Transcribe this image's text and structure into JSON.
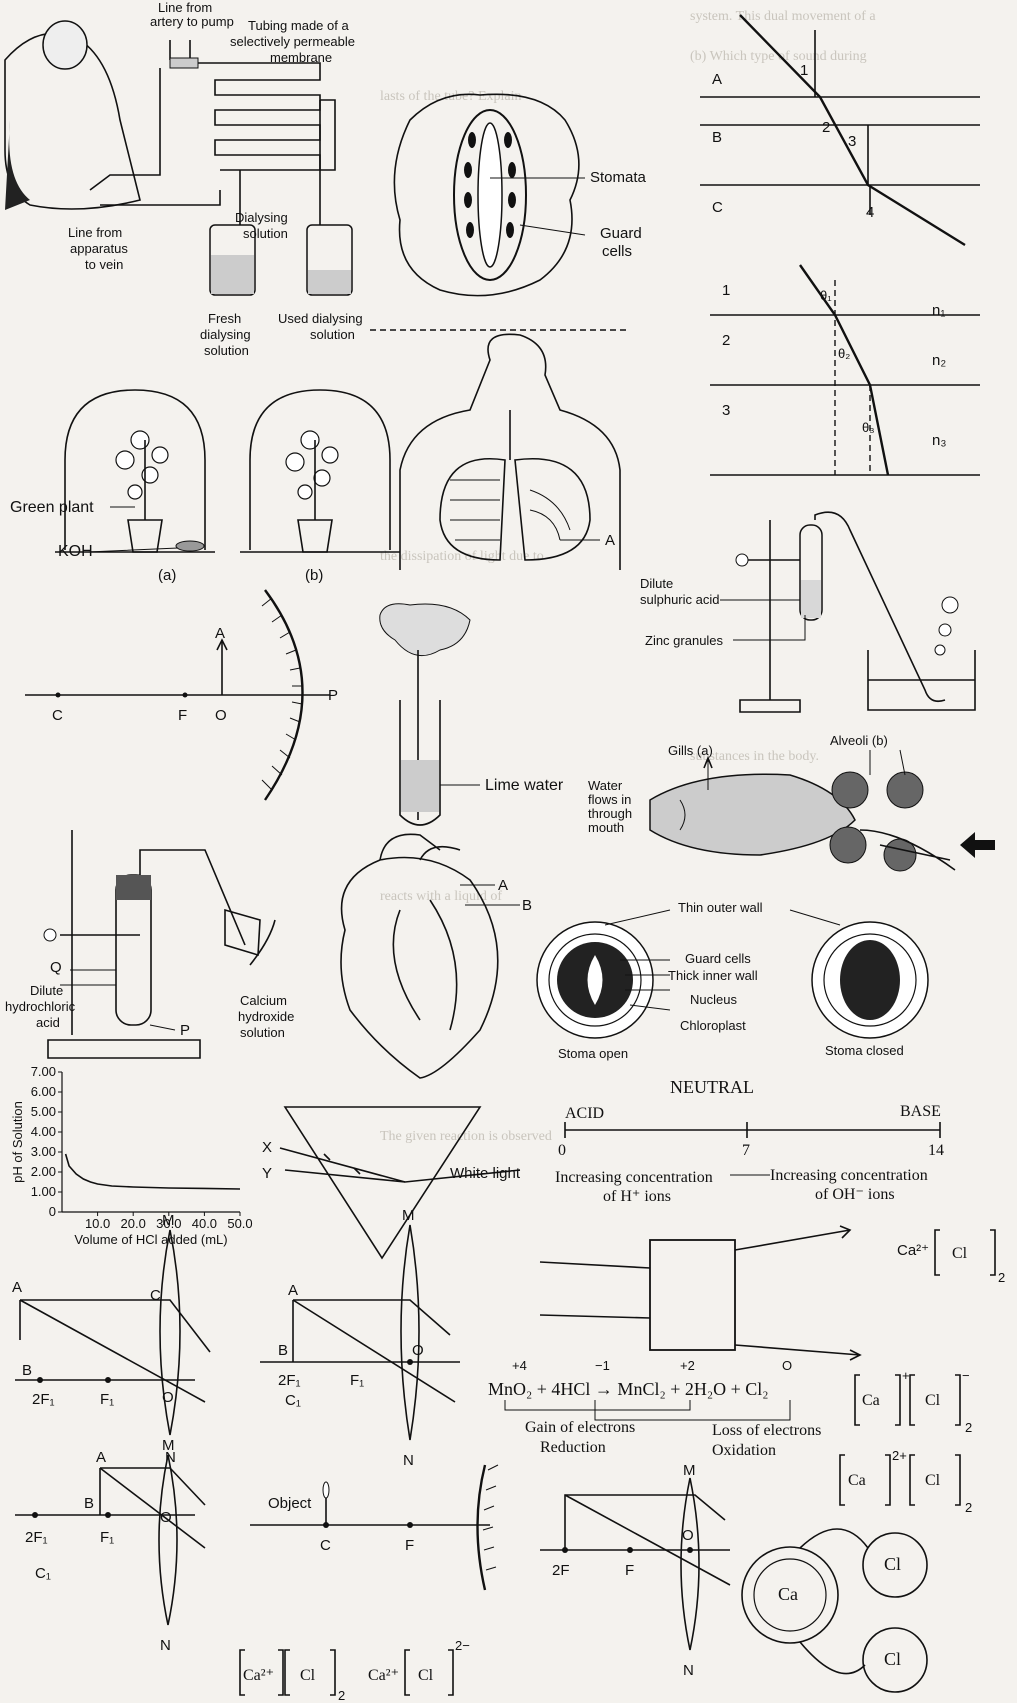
{
  "dialysis": {
    "line_artery": "Line from\nartery to pump",
    "tubing": "Tubing made of a\nselectively permeable\nmembrane",
    "line_vein": "Line from\napparatus\nto vein",
    "dialysing": "Dialysing\nsolution",
    "fresh": "Fresh\ndialysing\nsolution",
    "used": "Used dialysing\nsolution"
  },
  "stomata": {
    "stomata": "Stomata",
    "guard": "Guard\ncells"
  },
  "refraction1": {
    "A": "A",
    "B": "B",
    "C": "C",
    "n1": "1",
    "n2": "2",
    "n3": "3",
    "n4": "4"
  },
  "refraction2": {
    "l1": "1",
    "l2": "2",
    "l3": "3",
    "t1": "θ1",
    "t2": "θ2",
    "t3": "θ3",
    "n1": "n1",
    "n2": "n2",
    "n3": "n3"
  },
  "belljar": {
    "green_plant": "Green plant",
    "koh": "KOH",
    "a": "(a)",
    "b": "(b)"
  },
  "lungs": {
    "A": "A"
  },
  "zinc": {
    "acid": "Dilute\nsulphuric acid",
    "zinc": "Zinc granules"
  },
  "mirror": {
    "A": "A",
    "C": "C",
    "F": "F",
    "O": "O",
    "P": "P"
  },
  "limewater": {
    "label": "Lime water"
  },
  "gills": {
    "gills": "Gills (a)",
    "alveoli": "Alveoli (b)",
    "water": "Water\nflows in\nthrough\nmouth"
  },
  "hcl_setup": {
    "Q": "Q",
    "acid": "Dilute\nhydrochloric\nacid",
    "P": "P",
    "caoh": "Calcium\nhydroxide\nsolution"
  },
  "heart": {
    "A": "A",
    "B": "B"
  },
  "guardcell": {
    "outer": "Thin outer wall",
    "guard": "Guard cells",
    "inner": "Thick inner wall",
    "nucleus": "Nucleus",
    "chloro": "Chloroplast",
    "open": "Stoma open",
    "closed": "Stoma closed"
  },
  "ph_scale": {
    "neutral": "NEUTRAL",
    "acid": "ACID",
    "base": "BASE",
    "v0": "0",
    "v7": "7",
    "v14": "14",
    "left": "Increasing concentration\nof H⁺ ions",
    "right": "Increasing concentration\nof OH⁻ ions"
  },
  "chart_data": {
    "type": "line",
    "xlabel": "Volume of HCl added (mL)",
    "ylabel": "pH of Solution",
    "ylim": [
      0,
      7
    ],
    "xlim": [
      0,
      50
    ],
    "yticks": [
      "0",
      "1.00",
      "2.00",
      "3.00",
      "4.00",
      "5.00",
      "6.00",
      "7.00"
    ],
    "xticks": [
      "10.0",
      "20.0",
      "30.0",
      "40.0",
      "50.0"
    ],
    "series": [
      {
        "x": [
          1,
          2,
          4,
          6,
          8,
          10,
          14,
          20,
          30,
          40,
          50
        ],
        "y": [
          2.9,
          2.3,
          1.9,
          1.65,
          1.5,
          1.4,
          1.3,
          1.25,
          1.2,
          1.18,
          1.15
        ]
      }
    ]
  },
  "prism": {
    "X": "X",
    "Y": "Y",
    "white": "White light"
  },
  "ca_box": {
    "formula": "Ca",
    "charge": "2+",
    "cl": "Cl",
    "sub": "2"
  },
  "lens1": {
    "A": "A",
    "M": "M",
    "C": "C",
    "B": "B",
    "F2": "2F",
    "F1": "F",
    "O": "O",
    "N": "N",
    "s1": "1"
  },
  "lens2": {
    "A": "A",
    "M": "M",
    "B": "B",
    "F2": "2F",
    "F1": "F",
    "C1": "C",
    "O": "O",
    "N": "N",
    "s1": "1"
  },
  "redox": {
    "reaction": "MnO₂ + 4HCl → MnCl₂ + 2H₂O + Cl₂",
    "ox1": "+4",
    "ox2": "−1",
    "ox3": "+2",
    "ox4": "O",
    "gain": "Gain of electrons",
    "reduction": "Reduction",
    "loss": "Loss of electrons",
    "oxidation": "Oxidation"
  },
  "lewis": {
    "ca": "Ca",
    "cl": "Cl",
    "plus": "+",
    "minus": "−",
    "two_plus": "2+",
    "sub": "2"
  },
  "lens3": {
    "A": "A",
    "M": "M",
    "B": "B",
    "F2": "2F",
    "F1": "F",
    "O": "O",
    "N": "N",
    "C1": "C",
    "s1": "1"
  },
  "concave": {
    "object": "Object",
    "C": "C",
    "F": "F"
  },
  "lens4": {
    "M": "M",
    "F2": "2F",
    "F": "F",
    "O": "O",
    "N": "N"
  },
  "atoms": {
    "ca": "Ca",
    "cl": "Cl"
  },
  "bottom": {
    "ca": "Ca",
    "cl": "Cl",
    "two_plus": "2+",
    "two_minus": "2−",
    "sub": "2"
  }
}
